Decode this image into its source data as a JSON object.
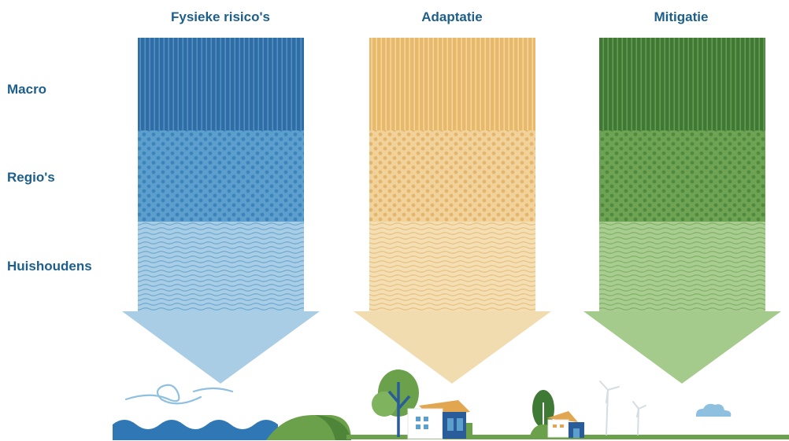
{
  "columns": [
    {
      "title": "Fysieke risico's",
      "color_dark": "#2e6da5",
      "color_mid": "#5c9fcd",
      "color_light": "#a9cde4"
    },
    {
      "title": "Adaptatie",
      "color_dark": "#e8b96b",
      "color_mid": "#edc98a",
      "color_light": "#f2dcae"
    },
    {
      "title": "Mitigatie",
      "color_dark": "#3f7a34",
      "color_mid": "#5f9947",
      "color_light": "#a3c98b"
    }
  ],
  "rows": [
    {
      "label": "Macro"
    },
    {
      "label": "Regio's"
    },
    {
      "label": "Huishoudens"
    }
  ],
  "colors": {
    "text": "#1d5f8a",
    "water": "#2f78b5",
    "ground": "#6aa14a",
    "house_blue": "#2a5c99",
    "roof": "#e1a64f"
  }
}
